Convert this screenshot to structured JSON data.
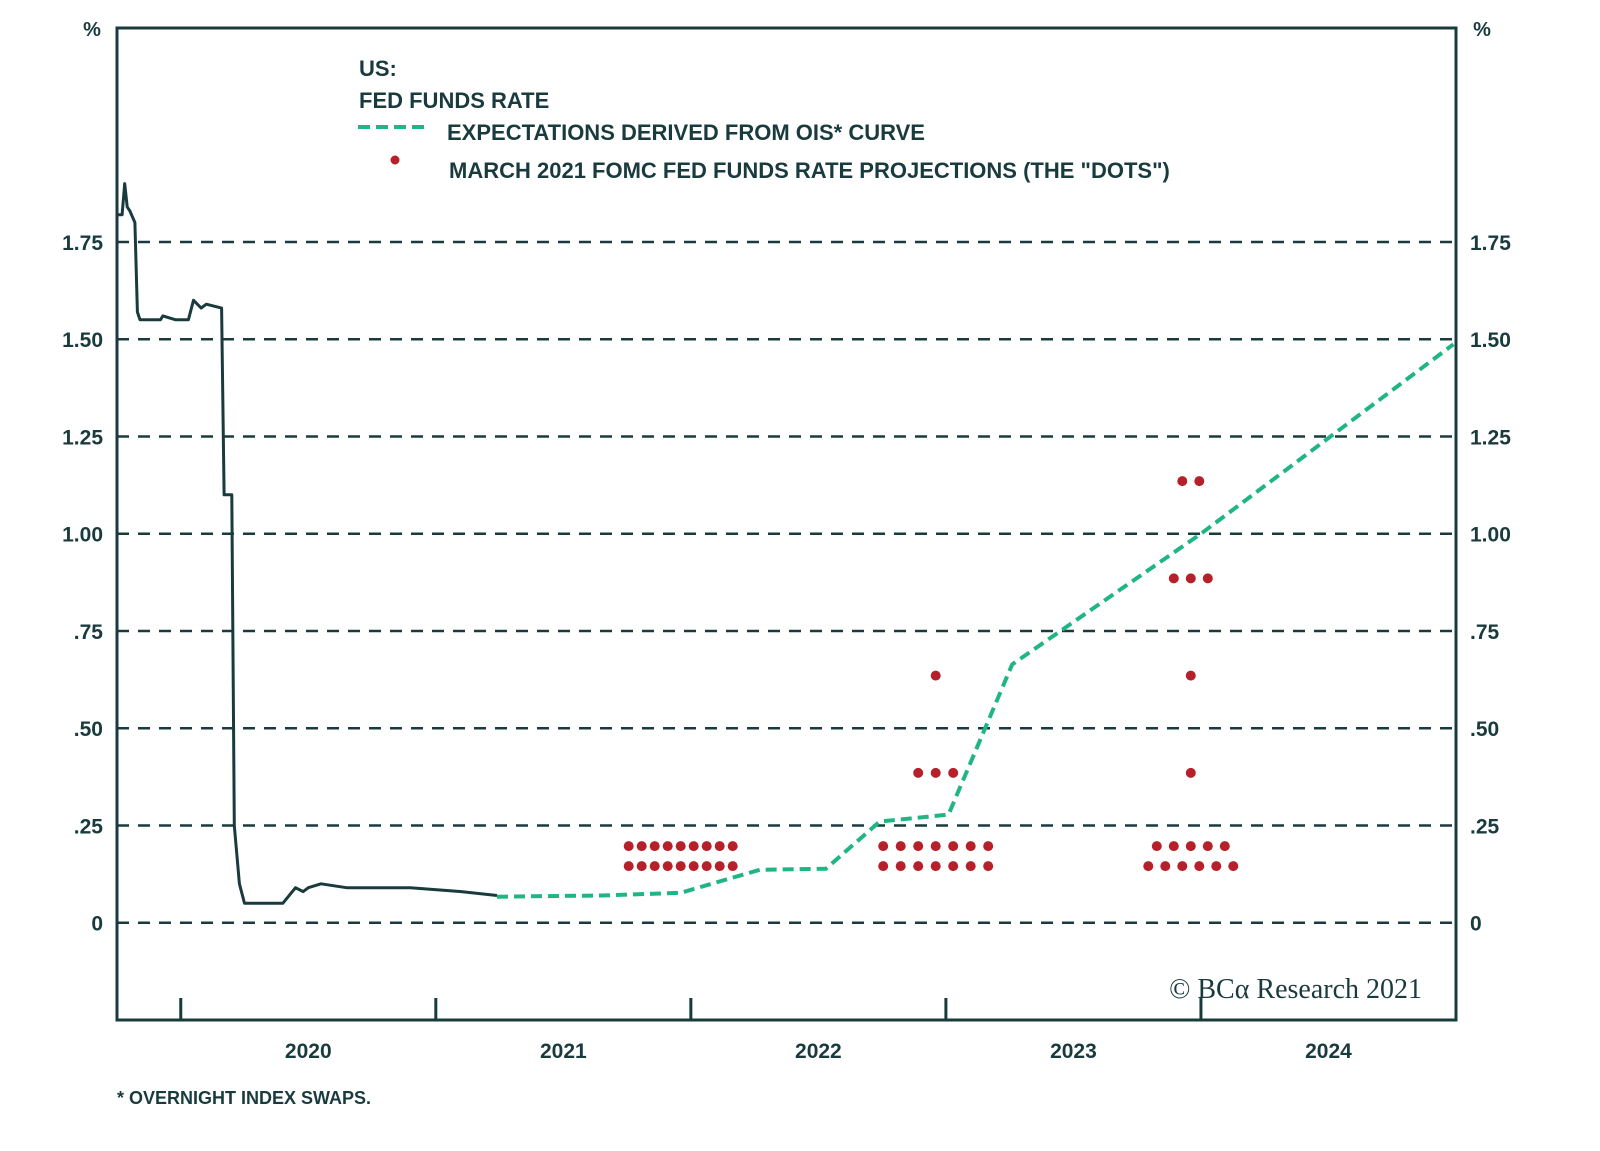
{
  "chart_data": {
    "type": "line",
    "title_lines": [
      "US:",
      "FED FUNDS RATE"
    ],
    "ylabel_left": "%",
    "ylabel_right": "%",
    "ylim": [
      -0.25,
      2.3
    ],
    "xlim": [
      2019.75,
      2025.0
    ],
    "y_ticks": [
      0,
      0.25,
      0.5,
      0.75,
      1.0,
      1.25,
      1.5,
      1.75
    ],
    "y_tick_labels": [
      "0",
      ".25",
      ".50",
      ".75",
      "1.00",
      "1.25",
      "1.50",
      "1.75"
    ],
    "x_tick_labels": [
      "2020",
      "2021",
      "2022",
      "2023",
      "2024"
    ],
    "grid": "horizontal dashed",
    "legend_placement": "top-left",
    "colors": {
      "axis": "#1a3b3e",
      "fed_funds": "#1a3b3e",
      "ois": "#1fb585",
      "dots": "#b5202a"
    },
    "series": [
      {
        "key": "fed_funds",
        "style": "solid",
        "points": [
          [
            2019.75,
            1.82
          ],
          [
            2019.77,
            1.82
          ],
          [
            2019.78,
            1.9
          ],
          [
            2019.79,
            1.84
          ],
          [
            2019.8,
            1.83
          ],
          [
            2019.82,
            1.8
          ],
          [
            2019.83,
            1.57
          ],
          [
            2019.84,
            1.55
          ],
          [
            2019.92,
            1.55
          ],
          [
            2019.93,
            1.56
          ],
          [
            2019.98,
            1.55
          ],
          [
            2020.03,
            1.55
          ],
          [
            2020.05,
            1.6
          ],
          [
            2020.08,
            1.58
          ],
          [
            2020.1,
            1.59
          ],
          [
            2020.16,
            1.58
          ],
          [
            2020.17,
            1.1
          ],
          [
            2020.2,
            1.1
          ],
          [
            2020.21,
            0.25
          ],
          [
            2020.23,
            0.1
          ],
          [
            2020.25,
            0.05
          ],
          [
            2020.33,
            0.05
          ],
          [
            2020.4,
            0.05
          ],
          [
            2020.45,
            0.09
          ],
          [
            2020.48,
            0.08
          ],
          [
            2020.5,
            0.09
          ],
          [
            2020.55,
            0.1
          ],
          [
            2020.65,
            0.09
          ],
          [
            2020.9,
            0.09
          ],
          [
            2021.1,
            0.08
          ],
          [
            2021.24,
            0.07
          ]
        ]
      },
      {
        "key": "ois",
        "name": "EXPECTATIONS DERIVED FROM OIS* CURVE",
        "style": "dashed",
        "points": [
          [
            2021.24,
            0.067
          ],
          [
            2021.65,
            0.07
          ],
          [
            2021.96,
            0.077
          ],
          [
            2022.27,
            0.136
          ],
          [
            2022.53,
            0.139
          ],
          [
            2022.74,
            0.26
          ],
          [
            2023.01,
            0.278
          ],
          [
            2023.26,
            0.664
          ],
          [
            2024.0,
            1.0
          ],
          [
            2024.99,
            1.487
          ]
        ]
      }
    ],
    "dots": {
      "name": "MARCH 2021 FOMC FED FUNDS RATE PROJECTIONS (THE \"DOTS\")",
      "groups": [
        {
          "year": 2021,
          "projections": [
            {
              "value": 0.125,
              "count": 18
            }
          ]
        },
        {
          "year": 2022,
          "projections": [
            {
              "value": 0.125,
              "count": 14
            },
            {
              "value": 0.375,
              "count": 3
            },
            {
              "value": 0.625,
              "count": 1
            }
          ]
        },
        {
          "year": 2023,
          "projections": [
            {
              "value": 0.125,
              "count": 11
            },
            {
              "value": 0.375,
              "count": 1
            },
            {
              "value": 0.625,
              "count": 1
            },
            {
              "value": 0.875,
              "count": 3
            },
            {
              "value": 1.125,
              "count": 2
            }
          ]
        }
      ]
    },
    "footnote": "* OVERNIGHT INDEX SWAPS.",
    "logo_text": "© BCα Research 2021"
  }
}
